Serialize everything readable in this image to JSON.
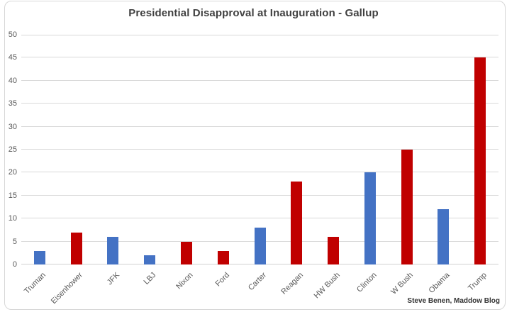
{
  "chart_data": {
    "type": "bar",
    "title": "Presidential Disapproval at Inauguration - Gallup",
    "categories": [
      "Truman",
      "Eisenhower",
      "JFK",
      "LBJ",
      "Nixon",
      "Ford",
      "Carter",
      "Reagan",
      "HW Bush",
      "Clinton",
      "W Bush",
      "Obama",
      "Trump"
    ],
    "values": [
      3,
      7,
      6,
      2,
      5,
      3,
      8,
      18,
      6,
      20,
      25,
      12,
      45
    ],
    "parties": [
      "D",
      "R",
      "D",
      "D",
      "R",
      "R",
      "D",
      "R",
      "R",
      "D",
      "R",
      "D",
      "R"
    ],
    "xlabel": "",
    "ylabel": "",
    "ylim": [
      0,
      50
    ],
    "yticks": [
      0,
      5,
      10,
      15,
      20,
      25,
      30,
      35,
      40,
      45,
      50
    ],
    "grid": true,
    "legend_position": "none"
  },
  "attribution": "Steve Benen, Maddow Blog",
  "colors": {
    "democrat_blue": "#4472C4",
    "republican_red": "#C00000",
    "gridline": "#D9D9D9",
    "axis_text": "#595959",
    "title_text": "#404040"
  }
}
